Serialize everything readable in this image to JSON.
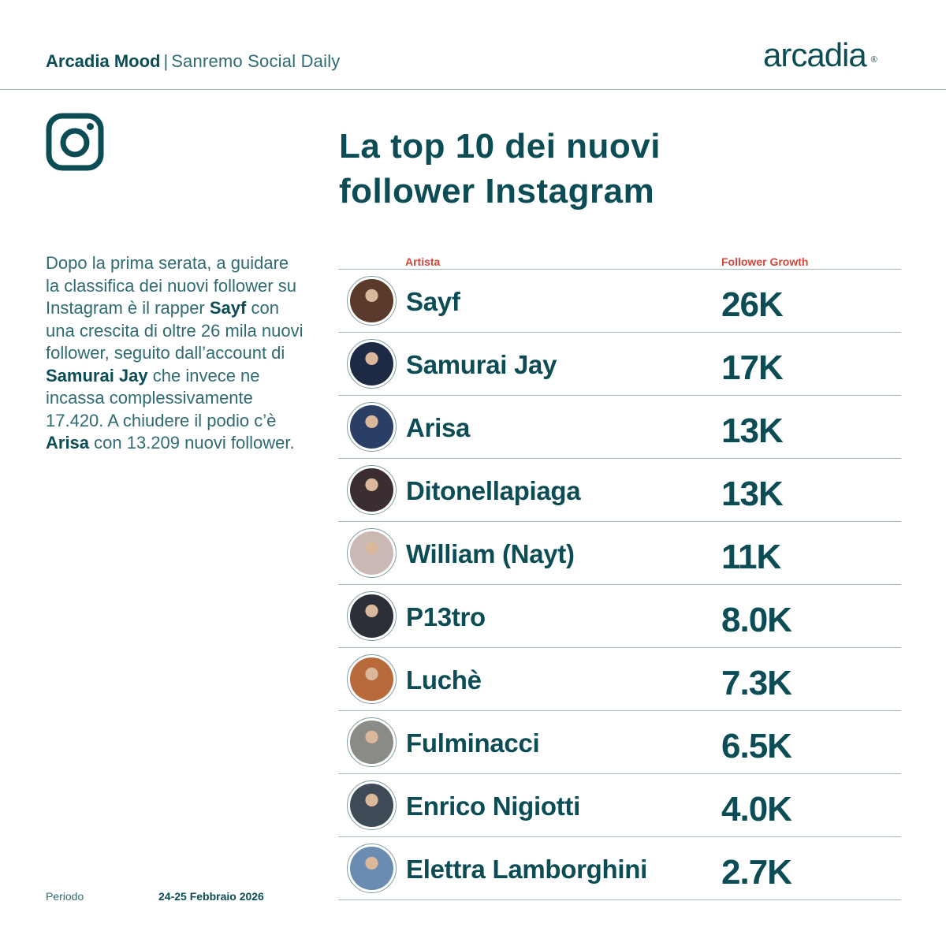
{
  "header": {
    "brand": "Arcadia Mood",
    "separator": "|",
    "subtitle": "Sanremo Social Daily",
    "logo_text": "arcadia",
    "logo_mark": "®"
  },
  "icon": "instagram-icon",
  "title": {
    "line1": "La top 10 dei nuovi",
    "line2": "follower Instagram"
  },
  "description": {
    "segments": [
      {
        "text": "Dopo la prima serata, a guidare la classifica dei nuovi follower su Instagram è il rapper ",
        "bold": false
      },
      {
        "text": "Sayf",
        "bold": true
      },
      {
        "text": " con una crescita di oltre 26 mila nuovi follower, seguito dall’account di ",
        "bold": false
      },
      {
        "text": "Samurai Jay",
        "bold": true
      },
      {
        "text": " che invece ne incassa complessivamente 17.420. A chiudere il podio c’è ",
        "bold": false
      },
      {
        "text": "Arisa",
        "bold": true
      },
      {
        "text": " con 13.209 nuovi follower.",
        "bold": false
      }
    ]
  },
  "footer": {
    "period_label": "Periodo",
    "period_value": "24-25 Febbraio 2026"
  },
  "table": {
    "columns": [
      "Artista",
      "Follower Growth"
    ],
    "header_color": "#d4463a",
    "rows": [
      {
        "artist": "Sayf",
        "growth": "26K",
        "avatar_color": "#5a3a2a"
      },
      {
        "artist": "Samurai Jay",
        "growth": "17K",
        "avatar_color": "#1e2a44"
      },
      {
        "artist": "Arisa",
        "growth": "13K",
        "avatar_color": "#2a3f66"
      },
      {
        "artist": "Ditonellapiaga",
        "growth": "13K",
        "avatar_color": "#3a2e30"
      },
      {
        "artist": "William (Nayt)",
        "growth": "11K",
        "avatar_color": "#c9b8b4"
      },
      {
        "artist": "P13tro",
        "growth": "8.0K",
        "avatar_color": "#2b2f38"
      },
      {
        "artist": "Luchè",
        "growth": "7.3K",
        "avatar_color": "#b86a3a"
      },
      {
        "artist": "Fulminacci",
        "growth": "6.5K",
        "avatar_color": "#8a8a86"
      },
      {
        "artist": "Enrico Nigiotti",
        "growth": "4.0K",
        "avatar_color": "#3e4a56"
      },
      {
        "artist": "Elettra Lamborghini",
        "growth": "2.7K",
        "avatar_color": "#6a8cb0"
      }
    ]
  },
  "colors": {
    "primary": "#0b4c55",
    "secondary_text": "#2f6b72",
    "accent": "#d4463a",
    "divider": "#9fb3b8"
  }
}
